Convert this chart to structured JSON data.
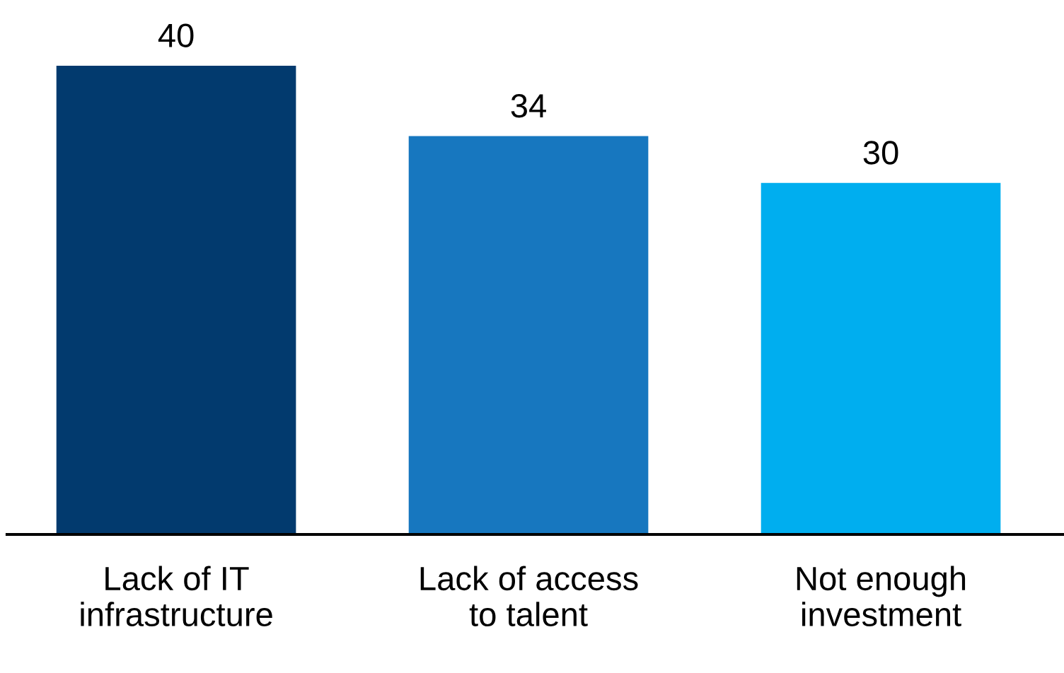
{
  "chart_data": {
    "type": "bar",
    "categories": [
      "Lack of IT\ninfrastructure",
      "Lack of access\nto talent",
      "Not enough\ninvestment"
    ],
    "values": [
      40,
      34,
      30
    ],
    "colors": [
      "#023a6e",
      "#1777bf",
      "#00aeef"
    ],
    "tick_labels": "x",
    "data_labels": true,
    "grid": false,
    "legend": false
  }
}
